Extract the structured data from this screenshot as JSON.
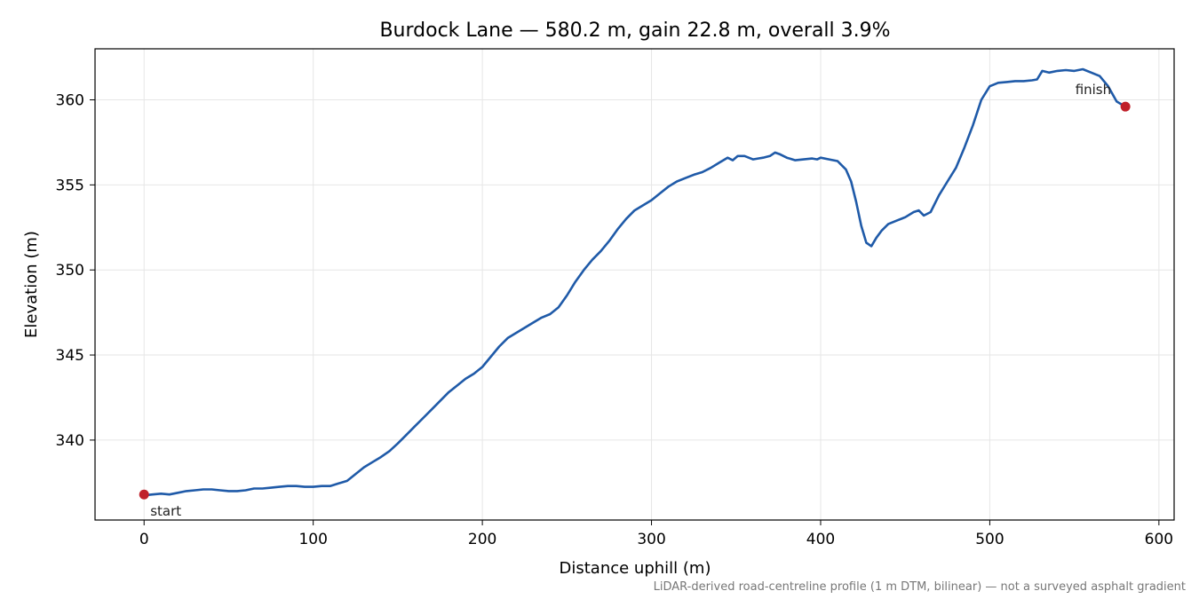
{
  "chart_data": {
    "type": "line",
    "title": "Burdock Lane — 580.2 m, gain 22.8 m, overall 3.9%",
    "xlabel": "Distance uphill (m)",
    "ylabel": "Elevation (m)",
    "xlim": [
      -29,
      609
    ],
    "ylim": [
      335.3,
      363.0
    ],
    "xticks": [
      0,
      100,
      200,
      300,
      400,
      500,
      600
    ],
    "yticks": [
      340,
      345,
      350,
      355,
      360
    ],
    "grid": true,
    "footnote": "LiDAR-derived road-centreline profile (1 m DTM, bilinear) — not a surveyed asphalt gradient",
    "colors": {
      "line": "#1f5aa8",
      "marker": "#c0202a",
      "grid": "#e6e6e6"
    },
    "series": [
      {
        "x": [
          0,
          5,
          10,
          15,
          20,
          25,
          30,
          35,
          40,
          45,
          50,
          55,
          60,
          65,
          70,
          75,
          80,
          85,
          90,
          95,
          100,
          105,
          110,
          115,
          120,
          125,
          130,
          135,
          140,
          145,
          150,
          155,
          160,
          165,
          170,
          175,
          180,
          185,
          190,
          195,
          200,
          205,
          210,
          215,
          220,
          225,
          230,
          235,
          240,
          245,
          250,
          255,
          260,
          265,
          270,
          275,
          280,
          285,
          290,
          295,
          300,
          305,
          310,
          315,
          320,
          325,
          330,
          335,
          340,
          345,
          348,
          351,
          355,
          360,
          363,
          366,
          370,
          373,
          376,
          380,
          385,
          390,
          395,
          398,
          400,
          405,
          410,
          415,
          418,
          421,
          424,
          427,
          430,
          433,
          436,
          440,
          445,
          450,
          455,
          458,
          461,
          465,
          470,
          475,
          480,
          485,
          490,
          495,
          500,
          505,
          510,
          515,
          520,
          525,
          528,
          531,
          535,
          540,
          545,
          550,
          555,
          560,
          565,
          570,
          575,
          580.2
        ],
        "y": [
          336.75,
          336.8,
          336.85,
          336.8,
          336.9,
          337.0,
          337.05,
          337.1,
          337.1,
          337.05,
          337.0,
          337.0,
          337.05,
          337.15,
          337.15,
          337.2,
          337.25,
          337.3,
          337.3,
          337.25,
          337.25,
          337.3,
          337.3,
          337.45,
          337.6,
          338.0,
          338.4,
          338.7,
          339.0,
          339.35,
          339.8,
          340.3,
          340.8,
          341.3,
          341.8,
          342.3,
          342.8,
          343.2,
          343.6,
          343.9,
          344.3,
          344.9,
          345.5,
          346.0,
          346.3,
          346.6,
          346.9,
          347.2,
          347.4,
          347.8,
          348.5,
          349.3,
          350.0,
          350.6,
          351.1,
          351.7,
          352.4,
          353.0,
          353.5,
          353.8,
          354.1,
          354.5,
          354.9,
          355.2,
          355.4,
          355.6,
          355.75,
          356.0,
          356.3,
          356.6,
          356.45,
          356.7,
          356.7,
          356.5,
          356.55,
          356.6,
          356.7,
          356.9,
          356.8,
          356.6,
          356.45,
          356.5,
          356.55,
          356.5,
          356.6,
          356.5,
          356.4,
          355.9,
          355.2,
          354.0,
          352.6,
          351.6,
          351.4,
          351.9,
          352.3,
          352.7,
          352.9,
          353.1,
          353.4,
          353.5,
          353.2,
          353.4,
          354.4,
          355.2,
          356.0,
          357.2,
          358.5,
          360.0,
          360.8,
          361.0,
          361.05,
          361.1,
          361.1,
          361.15,
          361.2,
          361.7,
          361.6,
          361.7,
          361.75,
          361.7,
          361.8,
          361.6,
          361.4,
          360.8,
          359.9,
          359.6
        ]
      }
    ],
    "points": [
      {
        "label": "start",
        "x": 0,
        "y": 336.8
      },
      {
        "label": "finish",
        "x": 580.2,
        "y": 359.6
      }
    ]
  }
}
